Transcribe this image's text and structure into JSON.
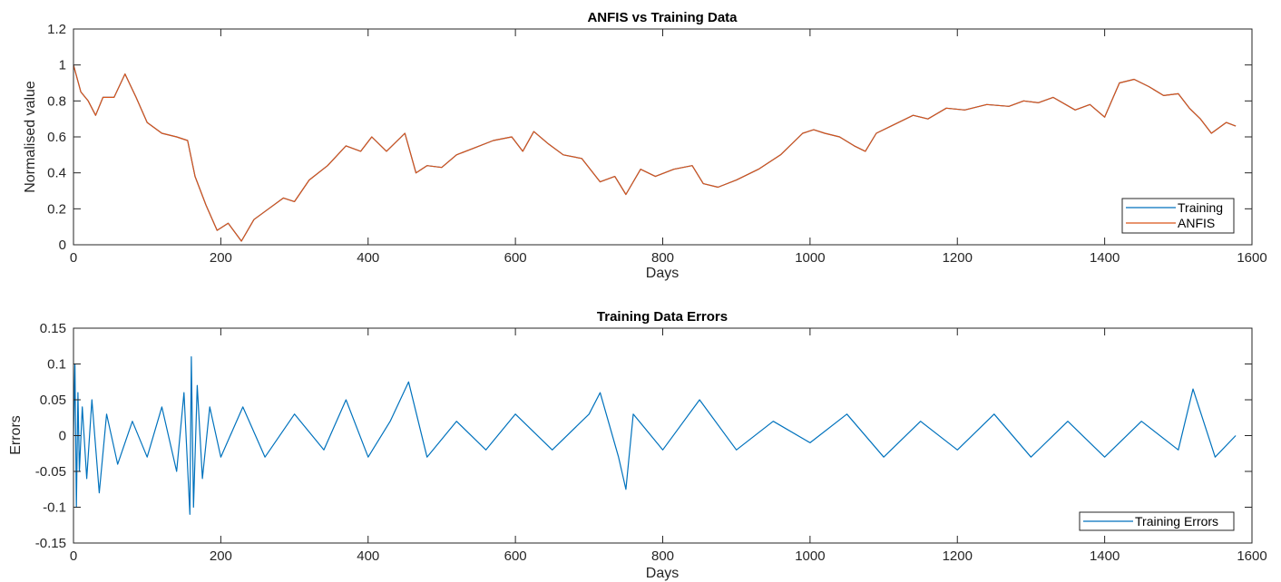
{
  "chart_data": [
    {
      "type": "line",
      "title": "ANFIS vs Training Data",
      "xlabel": "Days",
      "ylabel": "Normalised value",
      "xlim": [
        0,
        1600
      ],
      "ylim": [
        0,
        1.2
      ],
      "xticks": [
        0,
        200,
        400,
        600,
        800,
        1000,
        1200,
        1400,
        1600
      ],
      "xtick_labels": [
        "0",
        "200",
        "400",
        "600",
        "800",
        "1000",
        "1200",
        "1400",
        "1600"
      ],
      "yticks": [
        0,
        0.2,
        0.4,
        0.6,
        0.8,
        1,
        1.2
      ],
      "ytick_labels": [
        "0",
        "0.2",
        "0.4",
        "0.6",
        "0.8",
        "1",
        "1.2"
      ],
      "grid": false,
      "legend_position": "bottom-right",
      "series": [
        {
          "name": "Training",
          "color": "#0072BD",
          "x": [
            0,
            10,
            20,
            30,
            40,
            55,
            70,
            85,
            100,
            120,
            140,
            155,
            165,
            180,
            195,
            210,
            228,
            245,
            265,
            285,
            300,
            320,
            345,
            370,
            390,
            405,
            425,
            450,
            465,
            480,
            500,
            520,
            545,
            570,
            595,
            610,
            625,
            645,
            665,
            690,
            715,
            735,
            750,
            770,
            790,
            815,
            840,
            855,
            875,
            900,
            930,
            960,
            990,
            1005,
            1020,
            1040,
            1060,
            1075,
            1090,
            1110,
            1140,
            1160,
            1185,
            1210,
            1240,
            1270,
            1290,
            1310,
            1330,
            1360,
            1380,
            1400,
            1420,
            1440,
            1450,
            1460,
            1480,
            1500,
            1515,
            1530,
            1545,
            1565,
            1578
          ],
          "values": [
            1.0,
            0.85,
            0.8,
            0.72,
            0.82,
            0.82,
            0.95,
            0.82,
            0.68,
            0.62,
            0.6,
            0.58,
            0.38,
            0.22,
            0.08,
            0.12,
            0.02,
            0.14,
            0.2,
            0.26,
            0.24,
            0.36,
            0.44,
            0.55,
            0.52,
            0.6,
            0.52,
            0.62,
            0.4,
            0.44,
            0.43,
            0.5,
            0.54,
            0.58,
            0.6,
            0.52,
            0.63,
            0.56,
            0.5,
            0.48,
            0.35,
            0.38,
            0.28,
            0.42,
            0.38,
            0.42,
            0.44,
            0.34,
            0.32,
            0.36,
            0.42,
            0.5,
            0.62,
            0.64,
            0.62,
            0.6,
            0.55,
            0.52,
            0.62,
            0.66,
            0.72,
            0.7,
            0.76,
            0.75,
            0.78,
            0.77,
            0.8,
            0.79,
            0.82,
            0.75,
            0.78,
            0.71,
            0.9,
            0.92,
            0.9,
            0.88,
            0.83,
            0.84,
            0.76,
            0.7,
            0.62,
            0.68,
            0.66
          ]
        },
        {
          "name": "ANFIS",
          "color": "#D95319",
          "x": [
            0,
            10,
            20,
            30,
            40,
            55,
            70,
            85,
            100,
            120,
            140,
            155,
            165,
            180,
            195,
            210,
            228,
            245,
            265,
            285,
            300,
            320,
            345,
            370,
            390,
            405,
            425,
            450,
            465,
            480,
            500,
            520,
            545,
            570,
            595,
            610,
            625,
            645,
            665,
            690,
            715,
            735,
            750,
            770,
            790,
            815,
            840,
            855,
            875,
            900,
            930,
            960,
            990,
            1005,
            1020,
            1040,
            1060,
            1075,
            1090,
            1110,
            1140,
            1160,
            1185,
            1210,
            1240,
            1270,
            1290,
            1310,
            1330,
            1360,
            1380,
            1400,
            1420,
            1440,
            1450,
            1460,
            1480,
            1500,
            1515,
            1530,
            1545,
            1565,
            1578
          ],
          "values": [
            1.0,
            0.85,
            0.8,
            0.72,
            0.82,
            0.82,
            0.95,
            0.82,
            0.68,
            0.62,
            0.6,
            0.58,
            0.38,
            0.22,
            0.08,
            0.12,
            0.02,
            0.14,
            0.2,
            0.26,
            0.24,
            0.36,
            0.44,
            0.55,
            0.52,
            0.6,
            0.52,
            0.62,
            0.4,
            0.44,
            0.43,
            0.5,
            0.54,
            0.58,
            0.6,
            0.52,
            0.63,
            0.56,
            0.5,
            0.48,
            0.35,
            0.38,
            0.28,
            0.42,
            0.38,
            0.42,
            0.44,
            0.34,
            0.32,
            0.36,
            0.42,
            0.5,
            0.62,
            0.64,
            0.62,
            0.6,
            0.55,
            0.52,
            0.62,
            0.66,
            0.72,
            0.7,
            0.76,
            0.75,
            0.78,
            0.77,
            0.8,
            0.79,
            0.82,
            0.75,
            0.78,
            0.71,
            0.9,
            0.92,
            0.9,
            0.88,
            0.83,
            0.84,
            0.76,
            0.7,
            0.62,
            0.68,
            0.66
          ]
        }
      ]
    },
    {
      "type": "line",
      "title": "Training Data Errors",
      "xlabel": "Days",
      "ylabel": "Errors",
      "xlim": [
        0,
        1600
      ],
      "ylim": [
        -0.15,
        0.15
      ],
      "xticks": [
        0,
        200,
        400,
        600,
        800,
        1000,
        1200,
        1400,
        1600
      ],
      "xtick_labels": [
        "0",
        "200",
        "400",
        "600",
        "800",
        "1000",
        "1200",
        "1400",
        "1600"
      ],
      "yticks": [
        -0.15,
        -0.1,
        -0.05,
        0,
        0.05,
        0.1,
        0.15
      ],
      "ytick_labels": [
        "-0.15",
        "-0.1",
        "-0.05",
        "0",
        "0.05",
        "0.1",
        "0.15"
      ],
      "grid": false,
      "legend_position": "bottom-right",
      "series": [
        {
          "name": "Training Errors",
          "color": "#0072BD",
          "x": [
            0,
            2,
            4,
            6,
            8,
            12,
            18,
            25,
            35,
            45,
            60,
            80,
            100,
            120,
            140,
            150,
            158,
            160,
            163,
            168,
            175,
            185,
            200,
            230,
            260,
            300,
            340,
            370,
            400,
            430,
            455,
            480,
            520,
            560,
            600,
            650,
            700,
            715,
            740,
            750,
            760,
            800,
            850,
            900,
            950,
            1000,
            1050,
            1100,
            1150,
            1200,
            1250,
            1300,
            1350,
            1400,
            1450,
            1500,
            1520,
            1550,
            1578
          ],
          "values": [
            0,
            0.1,
            -0.1,
            0.06,
            -0.05,
            0.04,
            -0.06,
            0.05,
            -0.08,
            0.03,
            -0.04,
            0.02,
            -0.03,
            0.04,
            -0.05,
            0.06,
            -0.11,
            0.11,
            -0.1,
            0.07,
            -0.06,
            0.04,
            -0.03,
            0.04,
            -0.03,
            0.03,
            -0.02,
            0.05,
            -0.03,
            0.02,
            0.075,
            -0.03,
            0.02,
            -0.02,
            0.03,
            -0.02,
            0.03,
            0.06,
            -0.03,
            -0.075,
            0.03,
            -0.02,
            0.05,
            -0.02,
            0.02,
            -0.01,
            0.03,
            -0.03,
            0.02,
            -0.02,
            0.03,
            -0.03,
            0.02,
            -0.03,
            0.02,
            -0.02,
            0.065,
            -0.03,
            0
          ]
        }
      ]
    }
  ]
}
